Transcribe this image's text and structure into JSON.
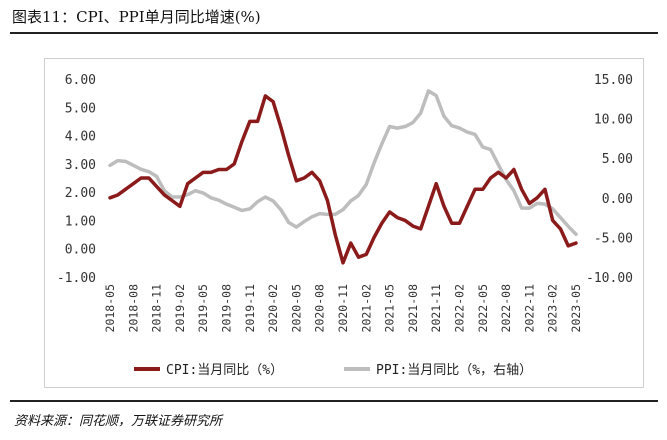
{
  "title": "图表11：CPI、PPI单月同比增速(%)",
  "source": "资料来源：同花顺，万联证券研究所",
  "colors": {
    "cpi": "#8b1a1a",
    "ppi": "#bdbdbd"
  },
  "chart_data": {
    "type": "line",
    "title": "图表11：CPI、PPI单月同比增速(%)",
    "x_tick_labels": [
      "2018-05",
      "2018-08",
      "2018-11",
      "2019-02",
      "2019-05",
      "2019-08",
      "2019-11",
      "2020-02",
      "2020-05",
      "2020-08",
      "2020-11",
      "2021-02",
      "2021-05",
      "2021-08",
      "2021-11",
      "2022-02",
      "2022-05",
      "2022-08",
      "2022-11",
      "2023-02",
      "2023-05"
    ],
    "y_left": {
      "ticks": [
        "6.00",
        "5.00",
        "4.00",
        "3.00",
        "2.00",
        "1.00",
        "0.00",
        "-1.00"
      ],
      "range": [
        -1,
        6
      ]
    },
    "y_right": {
      "ticks": [
        "15.00",
        "10.00",
        "5.00",
        "0.00",
        "-5.00",
        "-10.00"
      ],
      "range": [
        -10,
        15
      ]
    },
    "legend_position": "bottom",
    "series": [
      {
        "name": "CPI:当月同比（%）",
        "axis": "left",
        "x": [
          "2018-05",
          "2018-06",
          "2018-07",
          "2018-08",
          "2018-09",
          "2018-10",
          "2018-11",
          "2018-12",
          "2019-01",
          "2019-02",
          "2019-03",
          "2019-04",
          "2019-05",
          "2019-06",
          "2019-07",
          "2019-08",
          "2019-09",
          "2019-10",
          "2019-11",
          "2019-12",
          "2020-01",
          "2020-02",
          "2020-03",
          "2020-04",
          "2020-05",
          "2020-06",
          "2020-07",
          "2020-08",
          "2020-09",
          "2020-10",
          "2020-11",
          "2020-12",
          "2021-01",
          "2021-02",
          "2021-03",
          "2021-04",
          "2021-05",
          "2021-06",
          "2021-07",
          "2021-08",
          "2021-09",
          "2021-10",
          "2021-11",
          "2021-12",
          "2022-01",
          "2022-02",
          "2022-03",
          "2022-04",
          "2022-05",
          "2022-06",
          "2022-07",
          "2022-08",
          "2022-09",
          "2022-10",
          "2022-11",
          "2022-12",
          "2023-01",
          "2023-02",
          "2023-03",
          "2023-04",
          "2023-05"
        ],
        "values": [
          1.8,
          1.9,
          2.1,
          2.3,
          2.5,
          2.5,
          2.2,
          1.9,
          1.7,
          1.5,
          2.3,
          2.5,
          2.7,
          2.7,
          2.8,
          2.8,
          3.0,
          3.8,
          4.5,
          4.5,
          5.4,
          5.2,
          4.3,
          3.3,
          2.4,
          2.5,
          2.7,
          2.4,
          1.7,
          0.5,
          -0.5,
          0.2,
          -0.3,
          -0.2,
          0.4,
          0.9,
          1.3,
          1.1,
          1.0,
          0.8,
          0.7,
          1.5,
          2.3,
          1.5,
          0.9,
          0.9,
          1.5,
          2.1,
          2.1,
          2.5,
          2.7,
          2.5,
          2.8,
          2.1,
          1.6,
          1.8,
          2.1,
          1.0,
          0.7,
          0.1,
          0.2
        ]
      },
      {
        "name": "PPI:当月同比（%，右轴）",
        "axis": "right",
        "x": [
          "2018-05",
          "2018-06",
          "2018-07",
          "2018-08",
          "2018-09",
          "2018-10",
          "2018-11",
          "2018-12",
          "2019-01",
          "2019-02",
          "2019-03",
          "2019-04",
          "2019-05",
          "2019-06",
          "2019-07",
          "2019-08",
          "2019-09",
          "2019-10",
          "2019-11",
          "2019-12",
          "2020-01",
          "2020-02",
          "2020-03",
          "2020-04",
          "2020-05",
          "2020-06",
          "2020-07",
          "2020-08",
          "2020-09",
          "2020-10",
          "2020-11",
          "2020-12",
          "2021-01",
          "2021-02",
          "2021-03",
          "2021-04",
          "2021-05",
          "2021-06",
          "2021-07",
          "2021-08",
          "2021-09",
          "2021-10",
          "2021-11",
          "2021-12",
          "2022-01",
          "2022-02",
          "2022-03",
          "2022-04",
          "2022-05",
          "2022-06",
          "2022-07",
          "2022-08",
          "2022-09",
          "2022-10",
          "2022-11",
          "2022-12",
          "2023-01",
          "2023-02",
          "2023-03",
          "2023-04",
          "2023-05"
        ],
        "values": [
          4.1,
          4.7,
          4.6,
          4.1,
          3.6,
          3.3,
          2.7,
          0.9,
          0.1,
          0.1,
          0.4,
          0.9,
          0.6,
          0.0,
          -0.3,
          -0.8,
          -1.2,
          -1.6,
          -1.4,
          -0.5,
          0.1,
          -0.4,
          -1.5,
          -3.1,
          -3.7,
          -3.0,
          -2.4,
          -2.0,
          -2.1,
          -2.1,
          -1.5,
          -0.4,
          0.3,
          1.7,
          4.4,
          6.8,
          9.0,
          8.8,
          9.0,
          9.5,
          10.7,
          13.5,
          12.9,
          10.3,
          9.1,
          8.8,
          8.3,
          8.0,
          6.4,
          6.1,
          4.2,
          2.3,
          0.9,
          -1.3,
          -1.3,
          -0.7,
          -0.8,
          -1.4,
          -2.5,
          -3.6,
          -4.6
        ]
      }
    ]
  }
}
